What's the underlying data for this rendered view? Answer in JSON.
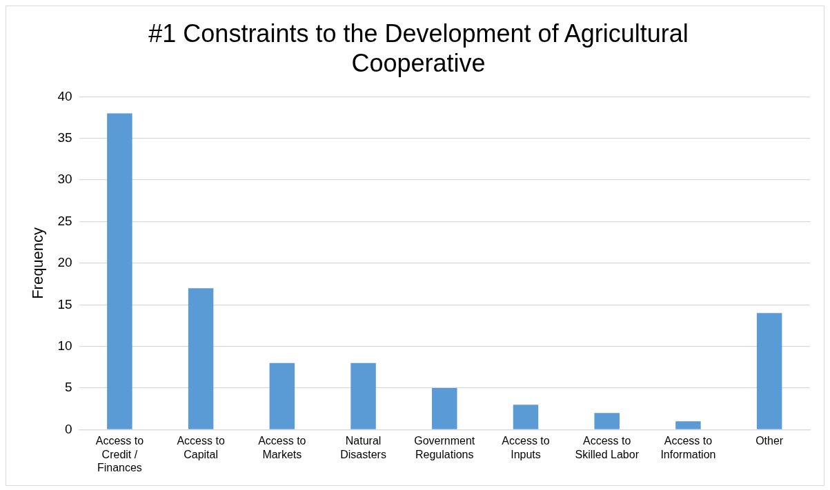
{
  "chart_data": {
    "type": "bar",
    "title": "#1 Constraints to the Development of Agricultural Cooperative",
    "ylabel": "Frequency",
    "categories": [
      "Access to Credit / Finances",
      "Access to Capital",
      "Access to Markets",
      "Natural Disasters",
      "Government Regulations",
      "Access to Inputs",
      "Access to Skilled Labor",
      "Access to Information",
      "Other"
    ],
    "values": [
      38,
      17,
      8,
      8,
      5,
      3,
      2,
      1,
      14
    ],
    "color": "#5b9bd5",
    "ylim": [
      0,
      40
    ],
    "yticks": [
      0,
      5,
      10,
      15,
      20,
      25,
      30,
      35,
      40
    ],
    "grid": "y",
    "legend": false
  }
}
